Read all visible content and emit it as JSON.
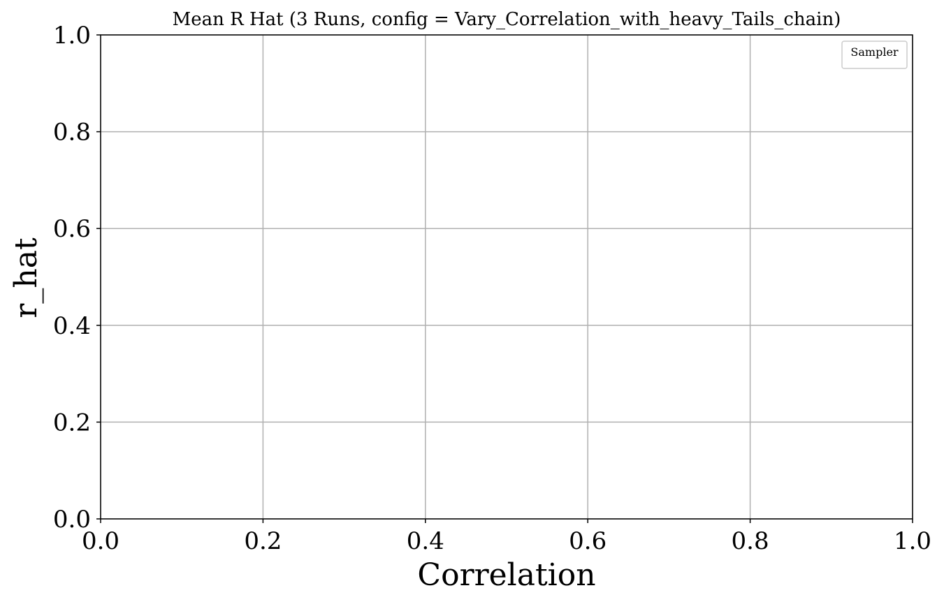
{
  "chart_data": {
    "type": "line",
    "title": "Mean R Hat (3 Runs, config = Vary_Correlation_with_heavy_Tails_chain)",
    "xlabel": "Correlation",
    "ylabel": "r_hat",
    "xlim": [
      0.0,
      1.0
    ],
    "ylim": [
      0.0,
      1.0
    ],
    "xticks": [
      "0.0",
      "0.2",
      "0.4",
      "0.6",
      "0.8",
      "1.0"
    ],
    "yticks": [
      "0.0",
      "0.2",
      "0.4",
      "0.6",
      "0.8",
      "1.0"
    ],
    "grid": true,
    "legend": {
      "title": "Sampler",
      "placement": "upper-right",
      "entries": []
    },
    "series": [],
    "colors": {
      "grid": "#b0b0b0",
      "axes": "#000000",
      "legend_border": "#cccccc"
    }
  }
}
